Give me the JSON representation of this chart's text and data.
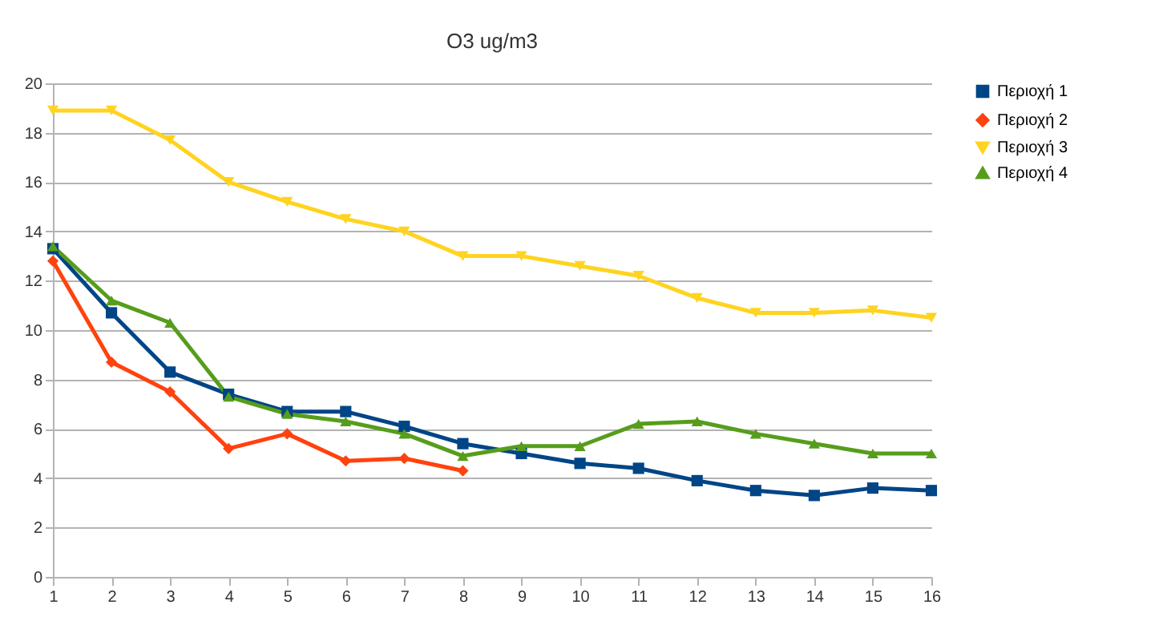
{
  "chart_data": {
    "type": "line",
    "title": "O3 ug/m3",
    "x": [
      1,
      2,
      3,
      4,
      5,
      6,
      7,
      8,
      9,
      10,
      11,
      12,
      13,
      14,
      15,
      16
    ],
    "xlim": [
      1,
      16
    ],
    "xticks": [
      1,
      2,
      3,
      4,
      5,
      6,
      7,
      8,
      9,
      10,
      11,
      12,
      13,
      14,
      15,
      16
    ],
    "ylim": [
      0,
      20
    ],
    "yticks": [
      0,
      2,
      4,
      6,
      8,
      10,
      12,
      14,
      16,
      18,
      20
    ],
    "grid": "y",
    "legend": "right",
    "line_style": "solid",
    "series": [
      {
        "name": "Περιοχή 1",
        "color": "#004586",
        "marker": "square",
        "values": [
          13.3,
          10.7,
          8.3,
          7.4,
          6.7,
          6.7,
          6.1,
          5.4,
          5.0,
          4.6,
          4.4,
          3.9,
          3.5,
          3.3,
          3.6,
          3.5
        ]
      },
      {
        "name": "Περιοχή 2",
        "color": "#ff420e",
        "marker": "diamond",
        "values": [
          12.8,
          8.7,
          7.5,
          5.2,
          5.8,
          4.7,
          4.8,
          4.3,
          null,
          null,
          null,
          null,
          null,
          null,
          null,
          null
        ]
      },
      {
        "name": "Περιοχή 3",
        "color": "#ffd320",
        "marker": "triangle-down",
        "values": [
          18.9,
          18.9,
          17.7,
          16.0,
          15.2,
          14.5,
          14.0,
          13.0,
          13.0,
          12.6,
          12.2,
          11.3,
          10.7,
          10.7,
          10.8,
          10.5
        ]
      },
      {
        "name": "Περιοχή 4",
        "color": "#579d1c",
        "marker": "triangle",
        "values": [
          13.4,
          11.2,
          10.3,
          7.3,
          6.6,
          6.3,
          5.8,
          4.9,
          5.3,
          5.3,
          6.2,
          6.3,
          5.8,
          5.4,
          5.0,
          5.0
        ]
      }
    ]
  }
}
